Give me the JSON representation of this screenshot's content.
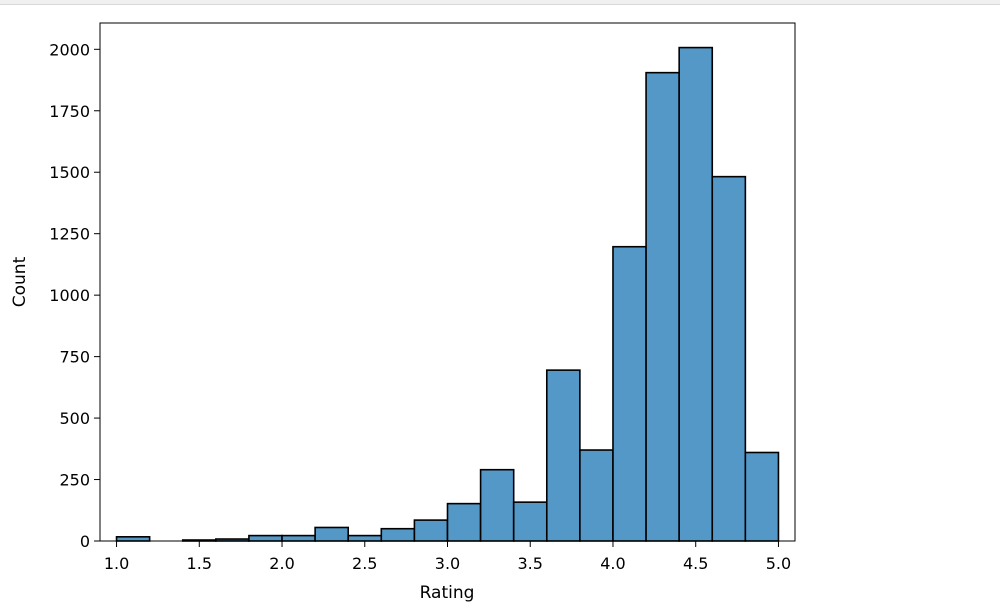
{
  "chart_data": {
    "type": "bar",
    "title": "",
    "xlabel": "Rating",
    "ylabel": "Count",
    "bin_edges": [
      1.0,
      1.2,
      1.4,
      1.6,
      1.8,
      2.0,
      2.2,
      2.4,
      2.6,
      2.8,
      3.0,
      3.2,
      3.4,
      3.6,
      3.8,
      4.0,
      4.2,
      4.4,
      4.6,
      4.8,
      5.0
    ],
    "values": [
      17,
      0,
      4,
      8,
      22,
      22,
      55,
      22,
      50,
      85,
      152,
      290,
      158,
      695,
      370,
      1197,
      1905,
      2007,
      1482,
      360
    ],
    "xlim": [
      0.9,
      5.1
    ],
    "ylim": [
      0,
      2107
    ],
    "xticks": [
      1.0,
      1.5,
      2.0,
      2.5,
      3.0,
      3.5,
      4.0,
      4.5,
      5.0
    ],
    "xtick_labels": [
      "1.0",
      "1.5",
      "2.0",
      "2.5",
      "3.0",
      "3.5",
      "4.0",
      "4.5",
      "5.0"
    ],
    "yticks": [
      0,
      250,
      500,
      750,
      1000,
      1250,
      1500,
      1750,
      2000
    ],
    "ytick_labels": [
      "0",
      "250",
      "500",
      "750",
      "1000",
      "1250",
      "1500",
      "1750",
      "2000"
    ],
    "grid": false,
    "colors": {
      "bar_fill": "#5498c8",
      "bar_edge": "#000000",
      "axes": "#000000"
    }
  }
}
